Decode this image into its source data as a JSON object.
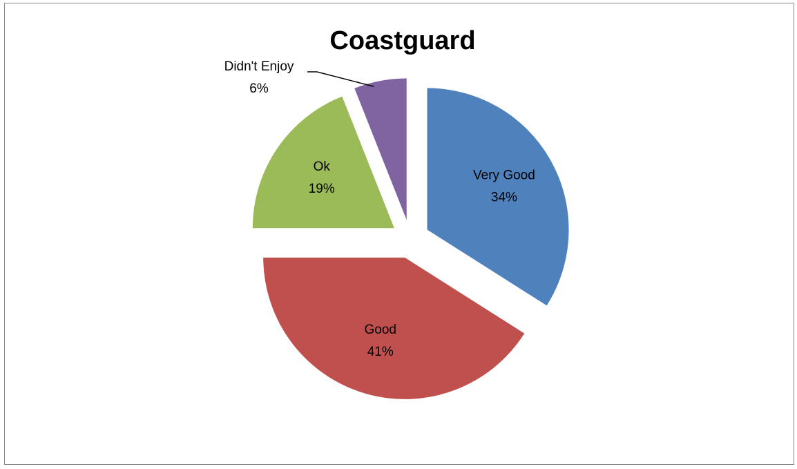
{
  "chart_data": {
    "type": "pie",
    "title": "Coastguard",
    "slices": [
      {
        "name": "Very Good",
        "value": 34,
        "label": "34%",
        "color": "#4F81BD"
      },
      {
        "name": "Good",
        "value": 41,
        "label": "41%",
        "color": "#C0504D"
      },
      {
        "name": "Ok",
        "value": 19,
        "label": "19%",
        "color": "#9BBB59"
      },
      {
        "name": "Didn't Enjoy",
        "value": 6,
        "label": "6%",
        "color": "#8064A2"
      }
    ],
    "exploded": true,
    "legend": "none"
  }
}
